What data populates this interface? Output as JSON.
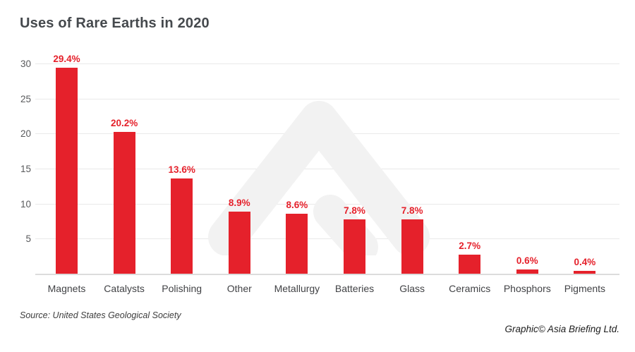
{
  "title": "Uses of Rare Earths in 2020",
  "source": "Source: United States Geological Society",
  "credit": "Graphic© Asia Briefing Ltd.",
  "colors": {
    "bar": "#e5212b",
    "value_label": "#e5212b",
    "title_text": "#45494d",
    "axis_text": "#595a5c",
    "category_text": "#414245",
    "gridline": "#e9e9e9",
    "baseline": "#dcdcdc",
    "watermark": "#f2f2f2",
    "background": "#ffffff"
  },
  "chart_data": {
    "type": "bar",
    "categories": [
      "Magnets",
      "Catalysts",
      "Polishing",
      "Other",
      "Metallurgy",
      "Batteries",
      "Glass",
      "Ceramics",
      "Phosphors",
      "Pigments"
    ],
    "values": [
      29.4,
      20.2,
      13.6,
      8.9,
      8.6,
      7.8,
      7.8,
      2.7,
      0.6,
      0.4
    ],
    "value_labels": [
      "29.4%",
      "20.2%",
      "13.6%",
      "8.9%",
      "8.6%",
      "7.8%",
      "7.8%",
      "2.7%",
      "0.6%",
      "0.4%"
    ],
    "title": "Uses of Rare Earths in 2020",
    "xlabel": "",
    "ylabel": "",
    "ylim": [
      0,
      30
    ],
    "yticks": [
      5,
      10,
      15,
      20,
      25,
      30
    ],
    "grid": true,
    "legend": false,
    "watermark_icon": "asia-briefing-chevron"
  }
}
